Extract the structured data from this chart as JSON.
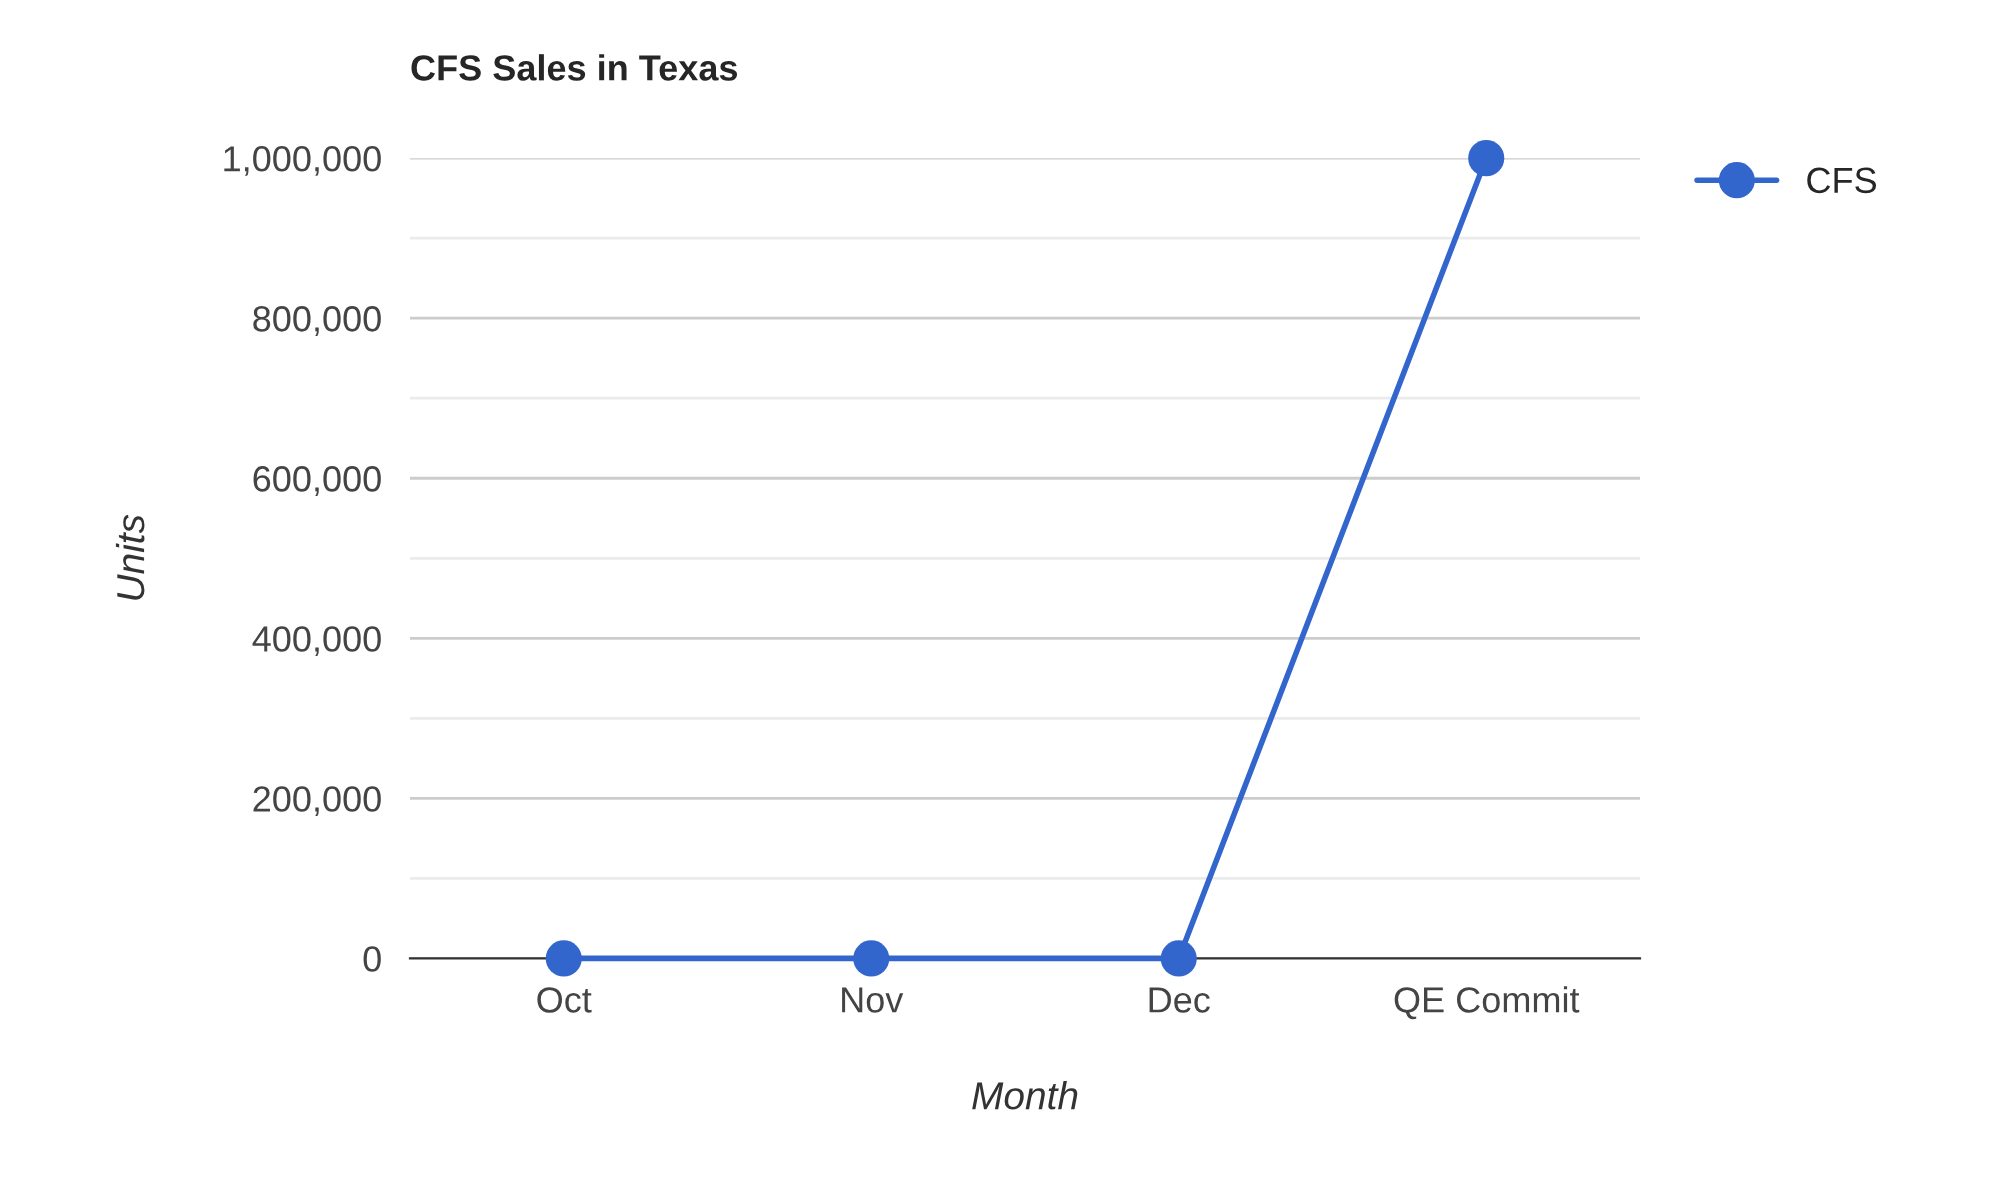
{
  "chart_data": {
    "type": "line",
    "title": "CFS Sales in Texas",
    "xlabel": "Month",
    "ylabel": "Units",
    "categories": [
      "Oct",
      "Nov",
      "Dec",
      "QE Commit"
    ],
    "series": [
      {
        "name": "CFS",
        "color": "#3366cc",
        "values": [
          0,
          0,
          0,
          1000000
        ]
      }
    ],
    "ylim": [
      0,
      1000000
    ],
    "yticks": [
      0,
      {
        "value": 100000,
        "label": null
      },
      {
        "value": 200000,
        "label": "200,000"
      },
      {
        "value": 300000,
        "label": null
      },
      {
        "value": 400000,
        "label": "400,000"
      },
      {
        "value": 500000,
        "label": null
      },
      {
        "value": 600000,
        "label": "600,000"
      },
      {
        "value": 700000,
        "label": null
      },
      {
        "value": 800000,
        "label": "800,000"
      },
      {
        "value": 900000,
        "label": null
      },
      {
        "value": 1000000,
        "label": "1,000,000"
      }
    ],
    "grid": "y",
    "legend": "top right",
    "marker": "circle",
    "line_style": "solid"
  }
}
